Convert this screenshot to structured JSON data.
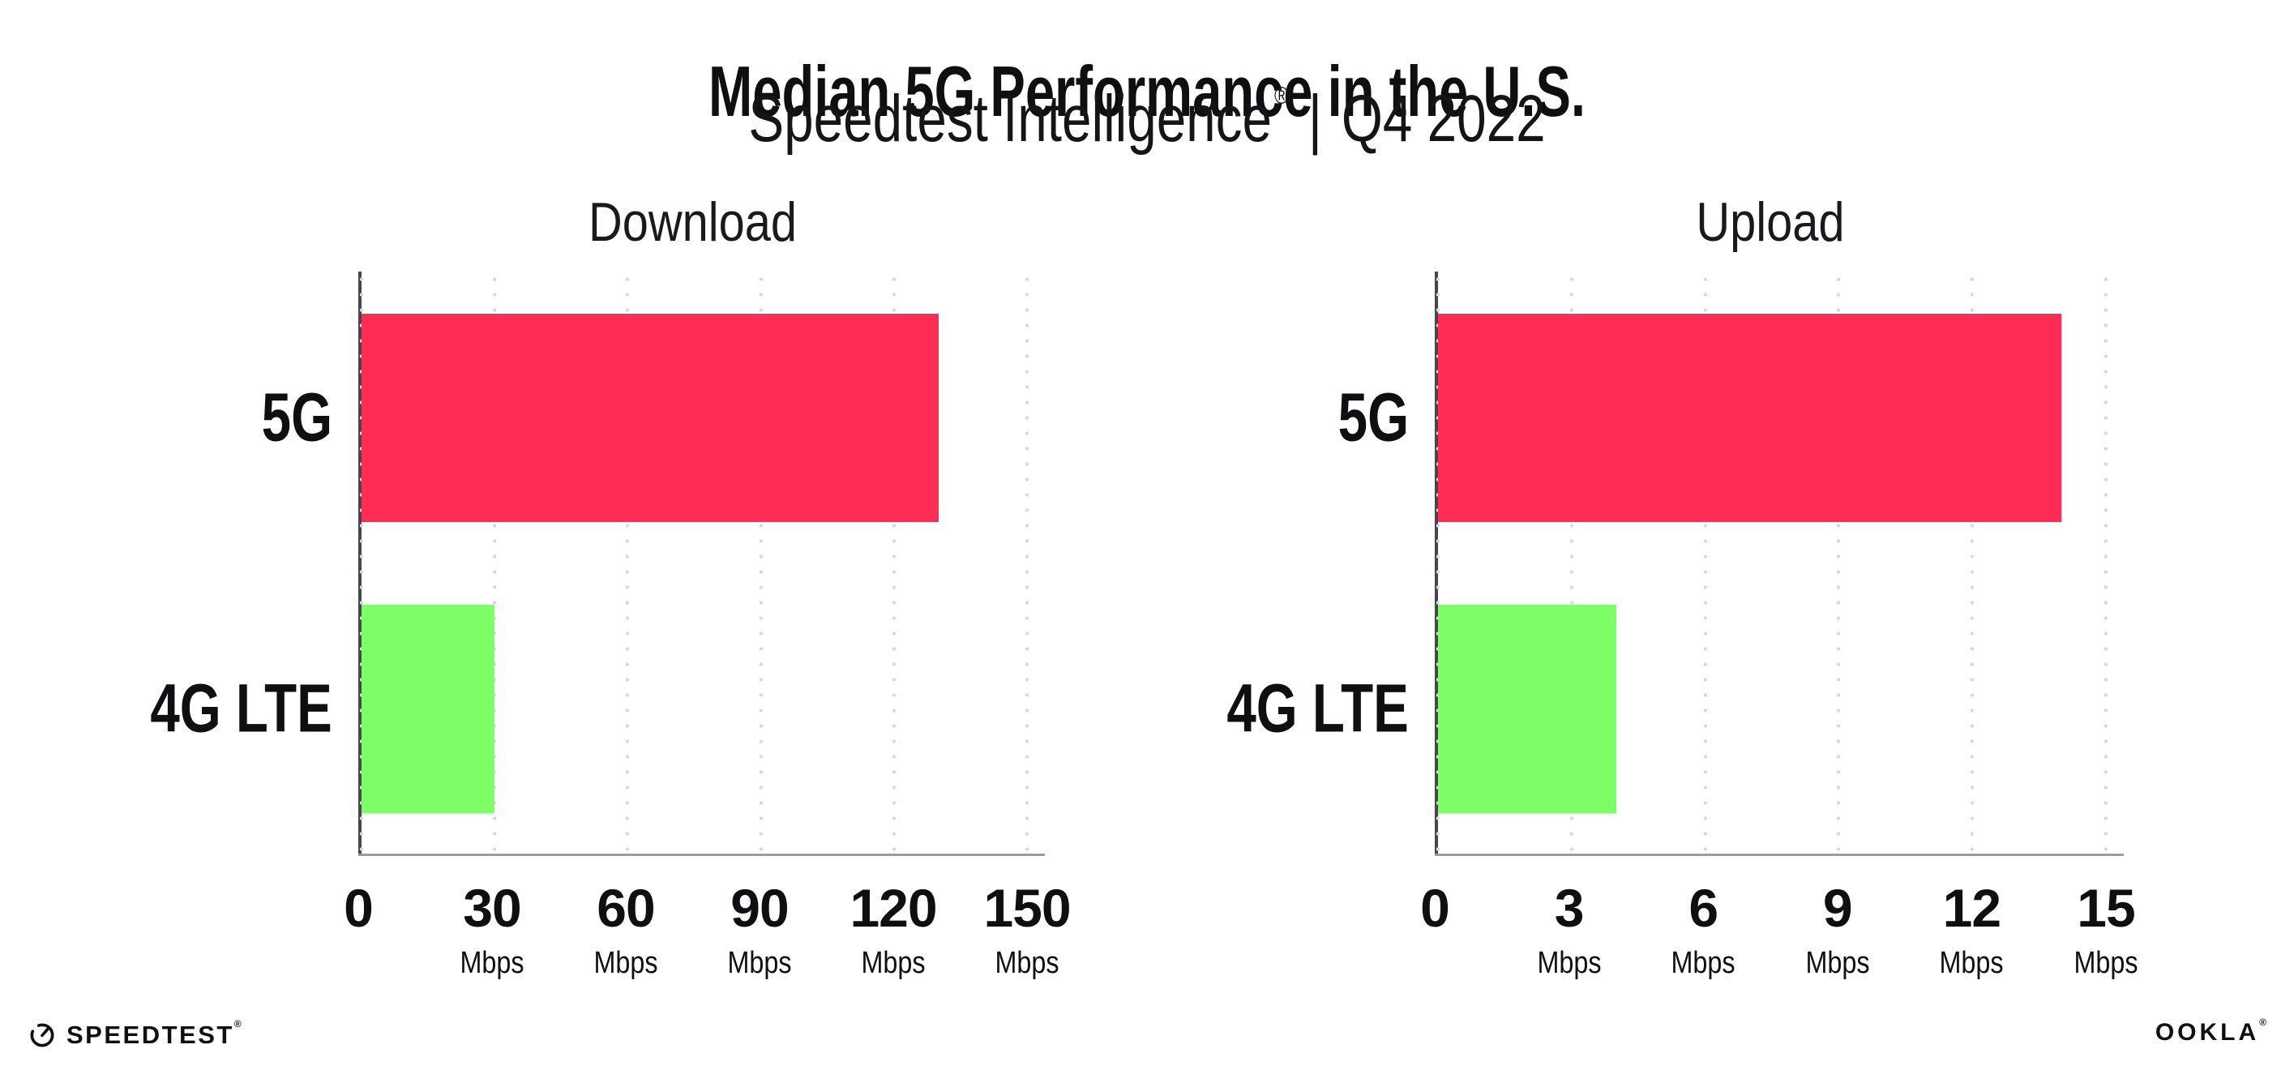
{
  "header": {
    "title": "Median 5G Performance in the U.S.",
    "subtitle_brand": "Speedtest Intelligence",
    "subtitle_registered": "®",
    "subtitle_divider": "|",
    "subtitle_period": "Q4 2022"
  },
  "chart_data": [
    {
      "type": "bar",
      "orientation": "horizontal",
      "title": "Download",
      "categories": [
        "5G",
        "4G LTE"
      ],
      "values": [
        130,
        30
      ],
      "unit": "Mbps",
      "xlim": [
        0,
        150
      ],
      "xticks": [
        0,
        30,
        60,
        90,
        120,
        150
      ],
      "bar_colors": [
        "#FF2D55",
        "#7DFE66"
      ],
      "grid": "dotted-vertical",
      "legend": "none"
    },
    {
      "type": "bar",
      "orientation": "horizontal",
      "title": "Upload",
      "categories": [
        "5G",
        "4G LTE"
      ],
      "values": [
        14,
        4
      ],
      "unit": "Mbps",
      "xlim": [
        0,
        15
      ],
      "xticks": [
        0,
        3,
        6,
        9,
        12,
        15
      ],
      "bar_colors": [
        "#FF2D55",
        "#7DFE66"
      ],
      "grid": "dotted-vertical",
      "legend": "none"
    }
  ],
  "footer": {
    "speedtest_label": "SPEEDTEST",
    "speedtest_mark": "®",
    "ookla_label": "OOKLA",
    "ookla_mark": "®"
  },
  "colors": {
    "bar_5g": "#FF2D55",
    "bar_4g_lte": "#7DFE66",
    "y_axis": "#46464E",
    "x_axis": "#9B9BA3",
    "gridline_dot": "#D9D9E4",
    "text": "#0F0F12",
    "background": "#FFFFFF"
  }
}
